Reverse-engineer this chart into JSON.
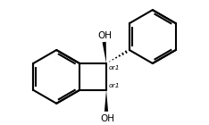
{
  "bg_color": "#ffffff",
  "line_color": "#000000",
  "line_width": 1.5,
  "text_color": "#000000",
  "font_size": 7.5,
  "label_OH_top": "OH",
  "label_OH_bottom": "OH",
  "label_or1_top": "or1",
  "label_or1_bottom": "or1"
}
